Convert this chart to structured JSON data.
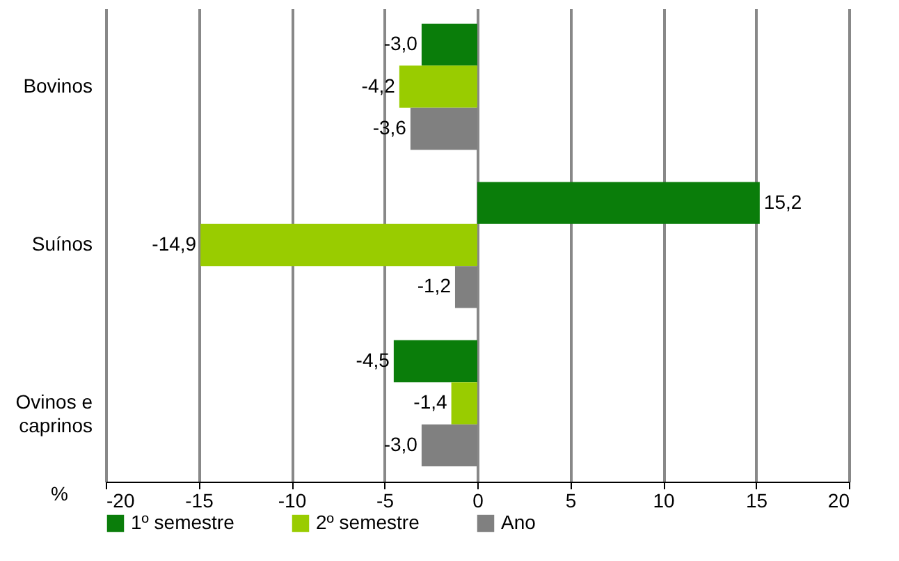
{
  "chart_data": {
    "type": "bar",
    "orientation": "horizontal",
    "categories": [
      "Bovinos",
      "Suínos",
      "Ovinos e caprinos"
    ],
    "series": [
      {
        "name": "1º semestre",
        "color": "#0a7d0a",
        "values": [
          -3.0,
          15.2,
          -4.5
        ],
        "value_labels": [
          "-3,0",
          "15,2",
          "-4,5"
        ]
      },
      {
        "name": "2º semestre",
        "color": "#99cc00",
        "values": [
          -4.2,
          -14.9,
          -1.4
        ],
        "value_labels": [
          "-4,2",
          "-14,9",
          "-1,4"
        ]
      },
      {
        "name": "Ano",
        "color": "#808080",
        "values": [
          -3.6,
          -1.2,
          -3.0
        ],
        "value_labels": [
          "-3,6",
          "-1,2",
          "-3,0"
        ]
      }
    ],
    "xlabel": "%",
    "xlim": [
      -20,
      20
    ],
    "xticks": [
      -20,
      -15,
      -10,
      -5,
      0,
      5,
      10,
      15,
      20
    ],
    "grid": "x",
    "legend": "bottom"
  }
}
